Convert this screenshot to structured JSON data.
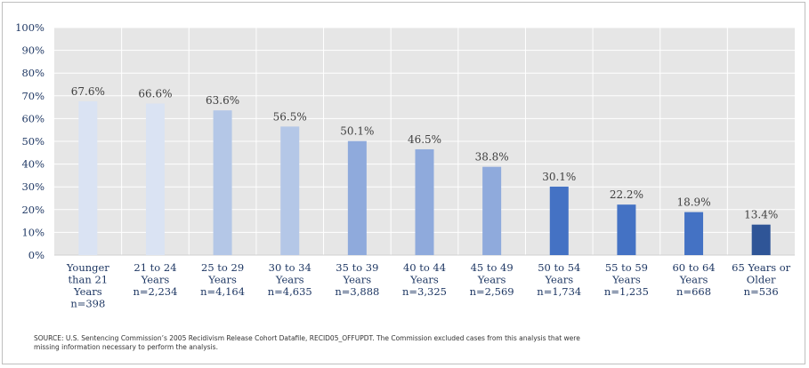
{
  "chart_data": {
    "type": "bar",
    "title": "",
    "xlabel": "",
    "ylabel": "",
    "ylim": [
      0,
      100
    ],
    "yticks": [
      "0%",
      "10%",
      "20%",
      "30%",
      "40%",
      "50%",
      "60%",
      "70%",
      "80%",
      "90%",
      "100%"
    ],
    "grid": true,
    "legend": "none",
    "categories": [
      [
        "Younger",
        "than 21",
        "Years",
        "n=398"
      ],
      [
        "21 to 24",
        "Years",
        "n=2,234"
      ],
      [
        "25 to 29",
        "Years",
        "n=4,164"
      ],
      [
        "30 to 34",
        "Years",
        "n=4,635"
      ],
      [
        "35 to 39",
        "Years",
        "n=3,888"
      ],
      [
        "40 to 44",
        "Years",
        "n=3,325"
      ],
      [
        "45 to 49",
        "Years",
        "n=2,569"
      ],
      [
        "50 to 54",
        "Years",
        "n=1,734"
      ],
      [
        "55 to 59",
        "Years",
        "n=1,235"
      ],
      [
        "60 to 64",
        "Years",
        "n=668"
      ],
      [
        "65 Years or",
        "Older",
        "n=536"
      ]
    ],
    "values": [
      67.6,
      66.6,
      63.6,
      56.5,
      50.1,
      46.5,
      38.8,
      30.1,
      22.2,
      18.9,
      13.4
    ],
    "value_labels": [
      "67.6%",
      "66.6%",
      "63.6%",
      "56.5%",
      "50.1%",
      "46.5%",
      "38.8%",
      "30.1%",
      "22.2%",
      "18.9%",
      "13.4%"
    ],
    "colors": [
      "#dae3f3",
      "#dae3f3",
      "#b4c7e7",
      "#b4c7e7",
      "#8faadc",
      "#8faadc",
      "#8faadc",
      "#4472c4",
      "#4472c4",
      "#4472c4",
      "#2f5597"
    ]
  },
  "source": {
    "line1": "SOURCE: U.S. Sentencing Commission’s 2005 Recidivism Release Cohort Datafile, RECID05_OFFUPDT. The Commission excluded cases from this analysis that were",
    "line2": "missing information necessary to perform the analysis."
  },
  "style": {
    "plot_background": "#e6e6e6",
    "grid_color": "#ffffff",
    "axis_text_color": "#1f3864",
    "label_text_color": "#404040"
  }
}
